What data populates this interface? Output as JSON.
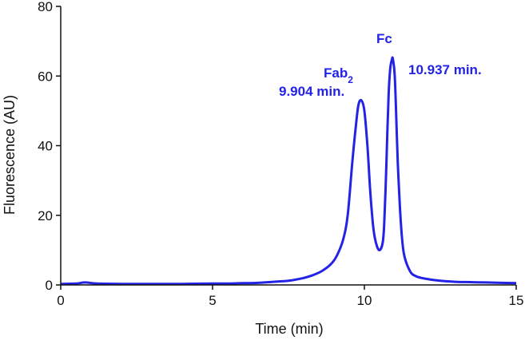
{
  "chart_data": {
    "type": "line",
    "title": "",
    "xlabel": "Time (min)",
    "ylabel": "Fluorescence (AU)",
    "xlim": [
      0,
      15
    ],
    "ylim": [
      0,
      80
    ],
    "xticks": [
      0,
      5,
      10,
      15
    ],
    "yticks": [
      0,
      20,
      40,
      60,
      80
    ],
    "xtick_labels": [
      "0",
      "5",
      "10",
      "15"
    ],
    "ytick_labels": [
      "0",
      "20",
      "40",
      "60",
      "80"
    ],
    "grid": false,
    "legend": "none",
    "line_color": "#2323e6",
    "series": [
      {
        "x": [
          0,
          0.5,
          0.8,
          1.2,
          2,
          3,
          4,
          5,
          5.5,
          6,
          6.5,
          7,
          7.5,
          8,
          8.3,
          8.6,
          8.9,
          9.1,
          9.3,
          9.45,
          9.6,
          9.7,
          9.8,
          9.9,
          10.0,
          10.1,
          10.2,
          10.3,
          10.4,
          10.5,
          10.6,
          10.65,
          10.7,
          10.75,
          10.8,
          10.85,
          10.9,
          10.937,
          11.0,
          11.05,
          11.1,
          11.2,
          11.3,
          11.5,
          11.7,
          12,
          12.5,
          13,
          13.5,
          14,
          14.5,
          15
        ],
        "y": [
          0.3,
          0.4,
          0.7,
          0.4,
          0.3,
          0.3,
          0.3,
          0.4,
          0.4,
          0.5,
          0.6,
          0.9,
          1.2,
          2.0,
          2.8,
          4.0,
          6.0,
          8.5,
          13.0,
          20.0,
          35.0,
          44.0,
          51.5,
          53.0,
          50.0,
          40.0,
          26.0,
          16.0,
          11.5,
          10.0,
          12.0,
          17.0,
          28.0,
          42.0,
          55.0,
          62.0,
          64.5,
          65.0,
          60.0,
          48.0,
          35.0,
          18.0,
          9.0,
          4.0,
          2.5,
          1.8,
          1.2,
          0.9,
          0.8,
          0.7,
          0.6,
          0.5
        ]
      }
    ],
    "annotations": [
      {
        "id": "fab",
        "label_main": "Fab",
        "label_sub": "2",
        "time": "9.904 min."
      },
      {
        "id": "fc",
        "label_main": "Fc",
        "time": "10.937 min."
      }
    ]
  }
}
